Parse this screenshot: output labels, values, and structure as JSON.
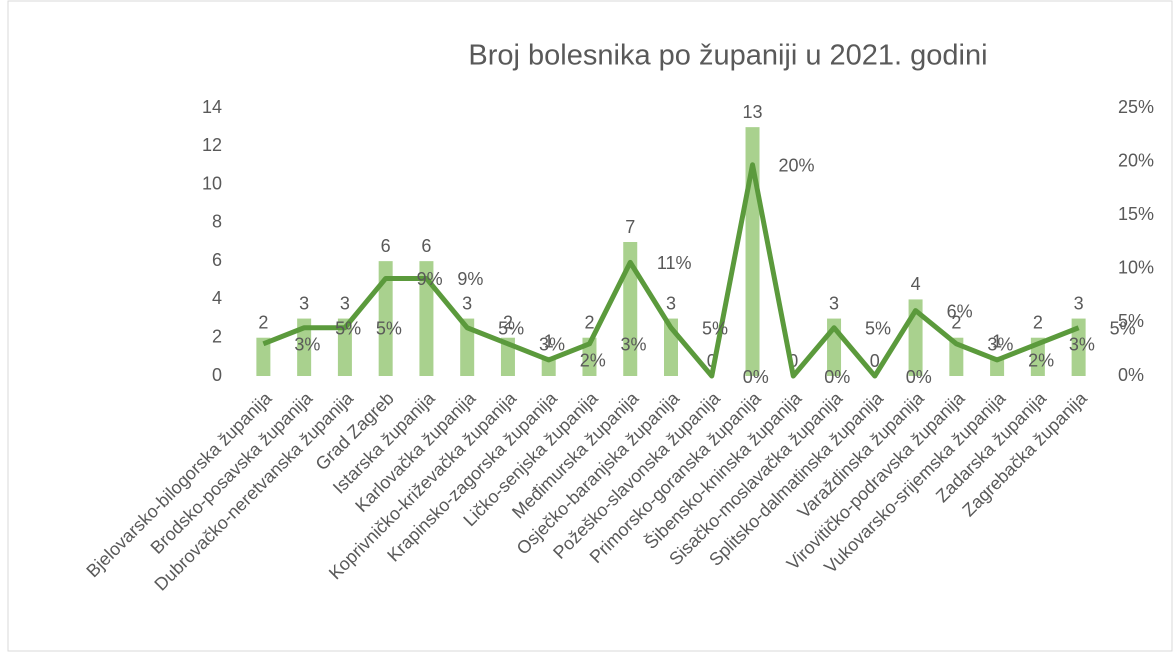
{
  "chart_data": {
    "type": "combo",
    "title": "Broj bolesnika po županiji u 2021. godini",
    "categories": [
      "Bjelovarsko-bilogorska županija",
      "Brodsko-posavska županija",
      "Dubrovačko-neretvanska županija",
      "Grad Zagreb",
      "Istarska županija",
      "Karlovačka županija",
      "Koprivničko-križevačka županija",
      "Krapinsko-zagorska županija",
      "Ličko-senjska županija",
      "Međimurska županija",
      "Osječko-baranjska županija",
      "Požeško-slavonska županija",
      "Primorsko-goranska županija",
      "Šibensko-kninska županija",
      "Sisačko-moslavačka županija",
      "Splitsko-dalmatinska županija",
      "Varaždinska županija",
      "Virovitičko-podravska županija",
      "Vukovarsko-srijemska županija",
      "Zadarska županija",
      "Zagrebačka županija"
    ],
    "series": [
      {
        "type": "bar",
        "color": "#a9d18e",
        "values": [
          2,
          3,
          3,
          6,
          6,
          3,
          2,
          1,
          2,
          7,
          3,
          0,
          13,
          0,
          3,
          0,
          4,
          2,
          1,
          2,
          3
        ]
      },
      {
        "type": "line",
        "axis": "y2",
        "color": "#5b9a3c",
        "values": [
          3.0,
          4.5,
          4.5,
          9.1,
          9.1,
          4.5,
          3.0,
          1.5,
          3.0,
          10.6,
          4.5,
          0,
          19.7,
          0,
          4.5,
          0,
          6.1,
          3.0,
          1.5,
          3.0,
          4.5
        ],
        "value_labels": [
          "3%",
          "5%",
          "5%",
          "9%",
          "9%",
          "5%",
          "3%",
          "2%",
          "3%",
          "11%",
          "5%",
          "0%",
          "20%",
          "0%",
          "5%",
          "0%",
          "6%",
          "3%",
          "2%",
          "3%",
          "5%"
        ]
      }
    ],
    "ylim": [
      0,
      14
    ],
    "yticks": [
      0,
      2,
      4,
      6,
      8,
      10,
      12,
      14
    ],
    "y2lim": [
      0,
      25
    ],
    "y2ticks": [
      {
        "value": 0,
        "label": "0%"
      },
      {
        "value": 5,
        "label": "5%"
      },
      {
        "value": 10,
        "label": "10%"
      },
      {
        "value": 15,
        "label": "15%"
      },
      {
        "value": 20,
        "label": "20%"
      },
      {
        "value": 25,
        "label": "25%"
      }
    ],
    "grid": false
  }
}
